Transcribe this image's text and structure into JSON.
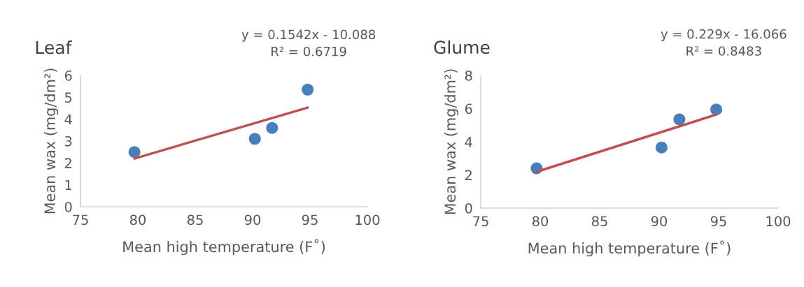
{
  "chart_data": [
    {
      "type": "scatter",
      "title": "Leaf",
      "xlabel": "Mean high temperature (F˚)",
      "ylabel": "Mean wax (mg/dm²)",
      "annotations": [
        "y = 0.1542x - 10.088",
        "R² = 0.6719"
      ],
      "xlim": [
        75,
        100
      ],
      "xticks": [
        75,
        80,
        85,
        90,
        95,
        100
      ],
      "ylim": [
        0,
        6
      ],
      "yticks": [
        0,
        1,
        2,
        3,
        4,
        5,
        6
      ],
      "grid": false,
      "series": [
        {
          "color": "#4a7ebb",
          "marker": "circle",
          "x": [
            79.7,
            90.2,
            91.7,
            94.8
          ],
          "values": [
            2.5,
            3.1,
            3.6,
            5.35
          ]
        },
        {
          "type": "line",
          "color": "#c0504d",
          "x": [
            79.7,
            94.8
          ],
          "values": [
            2.2,
            4.53
          ]
        }
      ]
    },
    {
      "type": "scatter",
      "title": "Glume",
      "xlabel": "Mean high temperature (F˚)",
      "ylabel": "Mean wax (mg/dm²)",
      "annotations": [
        "y = 0.229x - 16.066",
        "R² = 0.8483"
      ],
      "xlim": [
        75,
        100
      ],
      "xticks": [
        75,
        80,
        85,
        90,
        95,
        100
      ],
      "ylim": [
        0,
        8
      ],
      "yticks": [
        0,
        2,
        4,
        6,
        8
      ],
      "grid": false,
      "series": [
        {
          "color": "#4a7ebb",
          "marker": "circle",
          "x": [
            79.7,
            90.2,
            91.7,
            94.8
          ],
          "values": [
            2.4,
            3.65,
            5.35,
            5.95
          ]
        },
        {
          "type": "line",
          "color": "#c0504d",
          "x": [
            79.7,
            94.8
          ],
          "values": [
            2.19,
            5.64
          ]
        }
      ]
    }
  ]
}
